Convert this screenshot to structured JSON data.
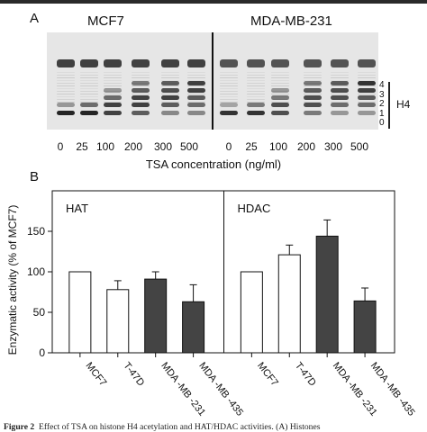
{
  "panel_a": {
    "letter": "A",
    "cell_lines": [
      "MCF7",
      "MDA-MB-231"
    ],
    "concentrations": [
      "0",
      "25",
      "100",
      "200",
      "300",
      "500",
      "0",
      "25",
      "100",
      "200",
      "300",
      "500"
    ],
    "xlabel": "TSA concentration (ng/ml)",
    "band_numbers": [
      "4",
      "3",
      "2",
      "1",
      "0"
    ],
    "bracket_label": "H4"
  },
  "panel_b": {
    "letter": "B",
    "panel_labels": [
      "HAT",
      "HDAC"
    ],
    "ylabel": "Enzymatic activity (% of MCF7)"
  },
  "chart_data": {
    "type": "bar",
    "ylabel": "Enzymatic activity (% of MCF7)",
    "ylim": [
      0,
      200
    ],
    "yticks": [
      0,
      50,
      100,
      150
    ],
    "groups": [
      {
        "name": "HAT",
        "categories": [
          "MCF7",
          "T-47D",
          "MDA -MB -231",
          "MDA -MB -435"
        ],
        "values": [
          100,
          78,
          91,
          63
        ],
        "errors": [
          0,
          11,
          9,
          21
        ],
        "fills": [
          "#ffffff",
          "#ffffff",
          "#444444",
          "#444444"
        ]
      },
      {
        "name": "HDAC",
        "categories": [
          "MCF7",
          "T-47D",
          "MDA -MB -231",
          "MDA -MB -435"
        ],
        "values": [
          100,
          121,
          144,
          64
        ],
        "errors": [
          0,
          12,
          20,
          16
        ],
        "fills": [
          "#ffffff",
          "#ffffff",
          "#444444",
          "#444444"
        ]
      }
    ]
  },
  "caption": {
    "lead": "Figure 2",
    "text": "Effect of TSA on histone H4 acetylation and HAT/HDAC activities. (A) Histones"
  }
}
